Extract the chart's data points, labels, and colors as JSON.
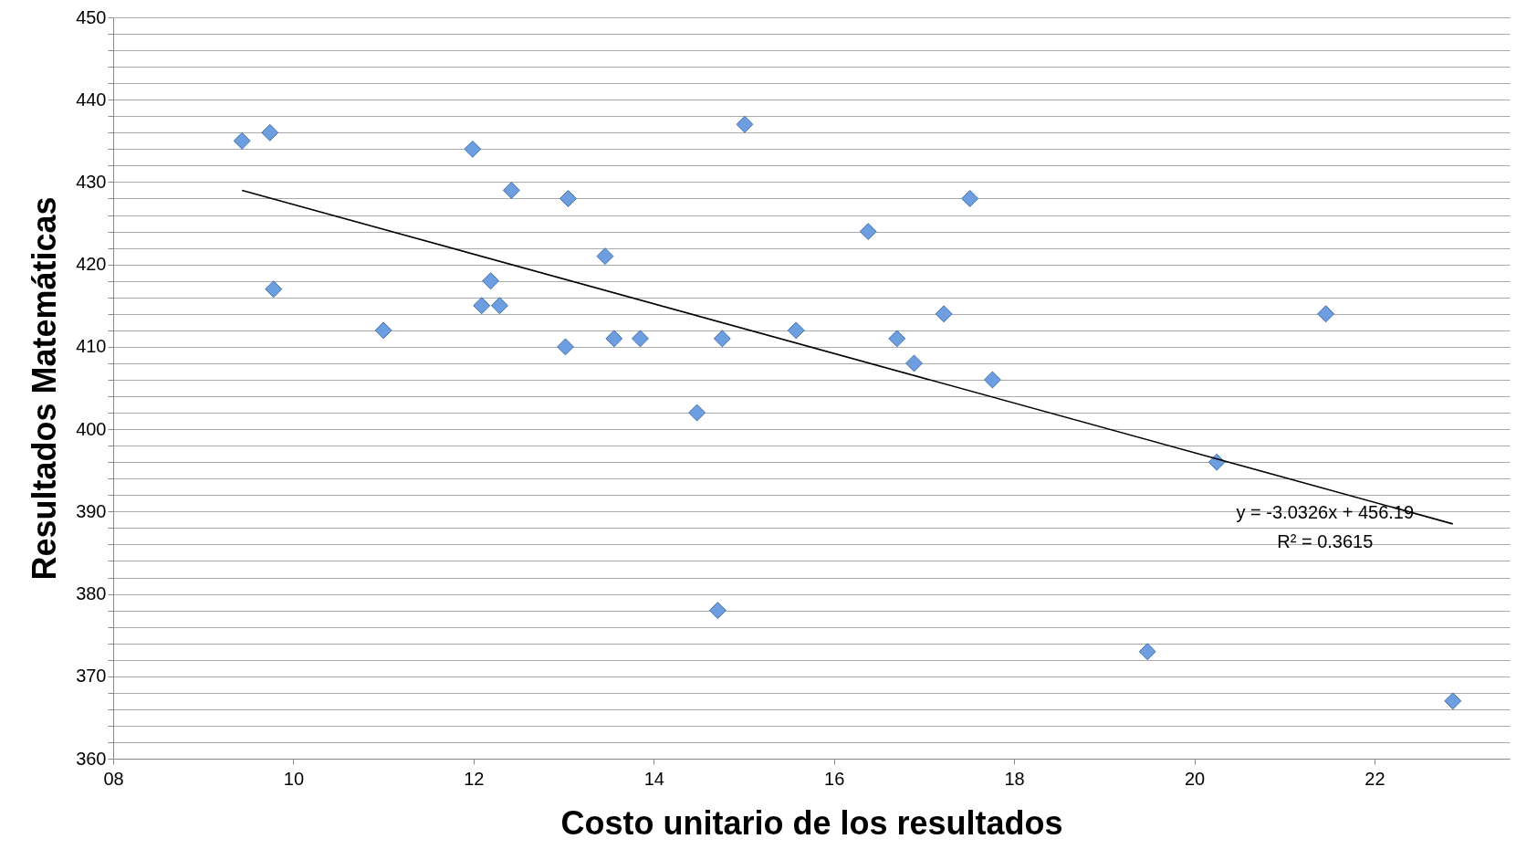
{
  "chart_data": {
    "type": "scatter",
    "xlabel": "Costo unitario de los resultados",
    "ylabel": "Resultados Matemáticas",
    "xlim": [
      8,
      23.5
    ],
    "xticks": [
      {
        "value": 8,
        "label": "08"
      },
      10,
      12,
      14,
      16,
      18,
      20,
      22
    ],
    "ylim": [
      360,
      450
    ],
    "yticks": [
      360,
      {
        "value": 362,
        "label": null
      },
      {
        "value": 364,
        "label": null
      },
      {
        "value": 366,
        "label": null
      },
      {
        "value": 368,
        "label": null
      },
      370,
      {
        "value": 372,
        "label": null
      },
      {
        "value": 374,
        "label": null
      },
      {
        "value": 376,
        "label": null
      },
      {
        "value": 378,
        "label": null
      },
      380,
      {
        "value": 382,
        "label": null
      },
      {
        "value": 384,
        "label": null
      },
      {
        "value": 386,
        "label": null
      },
      {
        "value": 388,
        "label": null
      },
      390,
      {
        "value": 392,
        "label": null
      },
      {
        "value": 394,
        "label": null
      },
      {
        "value": 396,
        "label": null
      },
      {
        "value": 398,
        "label": null
      },
      400,
      {
        "value": 402,
        "label": null
      },
      {
        "value": 404,
        "label": null
      },
      {
        "value": 406,
        "label": null
      },
      {
        "value": 408,
        "label": null
      },
      410,
      {
        "value": 412,
        "label": null
      },
      {
        "value": 414,
        "label": null
      },
      {
        "value": 416,
        "label": null
      },
      {
        "value": 418,
        "label": null
      },
      420,
      {
        "value": 422,
        "label": null
      },
      {
        "value": 424,
        "label": null
      },
      {
        "value": 426,
        "label": null
      },
      {
        "value": 428,
        "label": null
      },
      430,
      {
        "value": 432,
        "label": null
      },
      {
        "value": 434,
        "label": null
      },
      {
        "value": 436,
        "label": null
      },
      {
        "value": 438,
        "label": null
      },
      440,
      {
        "value": 442,
        "label": null
      },
      {
        "value": 444,
        "label": null
      },
      {
        "value": 446,
        "label": null
      },
      {
        "value": 448,
        "label": null
      },
      450
    ],
    "grid": "y",
    "marker": "diamond",
    "series": [
      {
        "color": "#6d9ee0",
        "x": [
          9.43,
          9.74,
          9.78,
          11.0,
          11.99,
          12.42,
          12.19,
          12.09,
          12.29,
          13.05,
          13.02,
          13.46,
          13.56,
          13.85,
          14.48,
          14.76,
          14.71,
          15.01,
          15.58,
          16.38,
          16.7,
          16.89,
          17.22,
          17.51,
          17.76,
          19.48,
          20.25,
          21.46,
          22.87
        ],
        "values": [
          435,
          436,
          417,
          412,
          434,
          429,
          418,
          415,
          415,
          428,
          410,
          421,
          411,
          411,
          402,
          411,
          378,
          437,
          412,
          424,
          411,
          408,
          414,
          428,
          406,
          373,
          396,
          414,
          367
        ]
      },
      {
        "type": "line",
        "color": "#000000",
        "marker": "none",
        "x": [
          9.43,
          22.87
        ],
        "values": [
          429,
          388.5
        ]
      }
    ],
    "annotations": [
      "y = -3.0326x + 456.19",
      "R² = 0.3615"
    ]
  }
}
